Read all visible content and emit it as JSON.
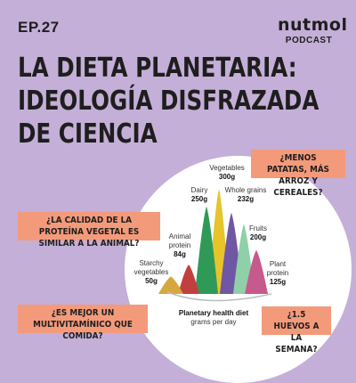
{
  "episode": "EP.27",
  "brand": {
    "logo": "nutmol",
    "subtitle": "PODCAST"
  },
  "title_lines": [
    "LA DIETA PLANETARIA:",
    "IDEOLOGÍA DISFRAZADA",
    "DE CIENCIA"
  ],
  "questions": {
    "q1": "¿MENOS PATATAS, MÁS ARROZ Y CEREALES?",
    "q2": "¿LA CALIDAD DE LA PROTEÍNA VEGETAL ES SIMILAR A LA ANIMAL?",
    "q3": "¿ES MEJOR UN MULTIVITAMÍNICO QUE COMIDA?",
    "q4": "¿1.5 HUEVOS A LA SEMANA?"
  },
  "chart_data": {
    "type": "area",
    "title": "Planetary health diet",
    "subtitle": "grams per day",
    "categories": [
      "Starchy vegetables",
      "Animal protein",
      "Dairy",
      "Vegetables",
      "Whole grains",
      "Fruits",
      "Plant protein"
    ],
    "values": [
      50,
      84,
      250,
      300,
      232,
      200,
      125
    ],
    "value_labels": [
      "50g",
      "84g",
      "250g",
      "300g",
      "232g",
      "200g",
      "125g"
    ],
    "colors": [
      "#d4a83f",
      "#c23f3f",
      "#2f9a57",
      "#e6c42a",
      "#6f57a5",
      "#8fd0a8",
      "#c75a8c"
    ]
  }
}
